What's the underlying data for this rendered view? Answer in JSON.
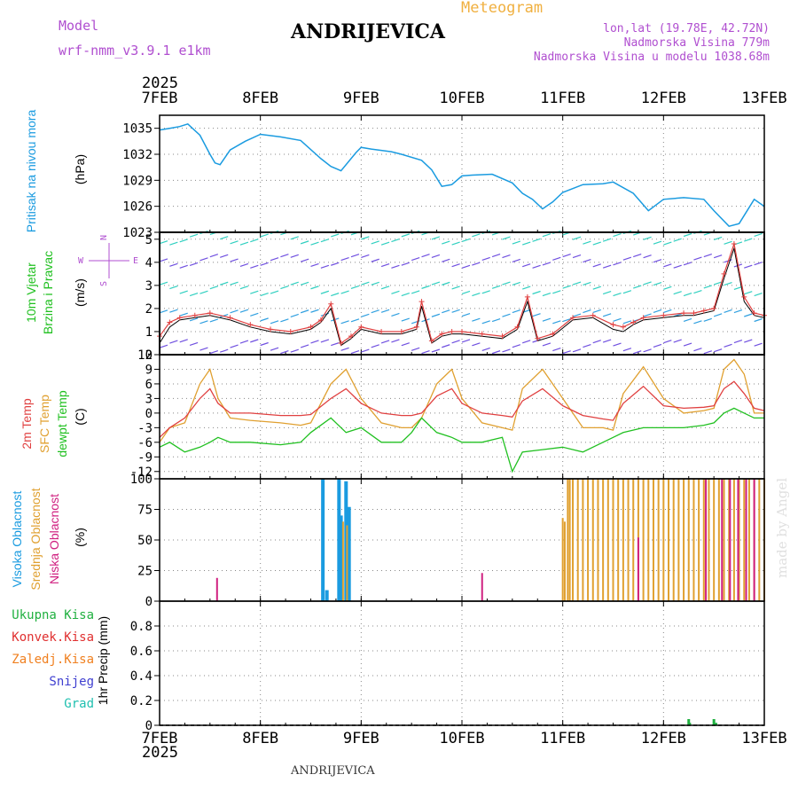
{
  "header": {
    "model_label": "Model",
    "model_name": "wrf-nmm_v3.9.1  e1km",
    "title": "ANDRIJEVICA",
    "subtitle": "Meteogram",
    "lonlat": "lon,lat (19.78E, 42.72N)",
    "elevation": "Nadmorska Visina 779m",
    "model_elevation": "Nadmorska Visina u modelu 1038.68m"
  },
  "footer": {
    "station": "ANDRIJEVICA",
    "credit": "made by Angel"
  },
  "x_axis": {
    "year": "2025",
    "ticks": [
      "7FEB",
      "8FEB",
      "9FEB",
      "10FEB",
      "11FEB",
      "12FEB",
      "13FEB"
    ]
  },
  "colors": {
    "pressure": "#1a9be0",
    "temp2m": "#e04040",
    "sfc_temp": "#e0a030",
    "dewpoint": "#20c020",
    "high_cloud": "#1a9be0",
    "mid_cloud": "#e0a030",
    "low_cloud": "#d02080",
    "total_precip": "#20b040",
    "conv_precip": "#e03030",
    "frozen_precip": "#f08020",
    "snow": "#4040d0",
    "graupel": "#20c0b0",
    "wind_label": "#20c020",
    "compass": "#b04fd0"
  },
  "panel_labels": {
    "pressure": [
      "Pritisak na nivou mora",
      "(hPa)"
    ],
    "wind": [
      "10m Vjetar",
      "Brzina i Pravac",
      "(m/s)"
    ],
    "compass": {
      "n": "N",
      "s": "S",
      "w": "W",
      "e": "E"
    },
    "temp": [
      "2m Temp",
      "SFC Temp",
      "dewpt Temp",
      "(C)"
    ],
    "cloud": [
      "Visoka Oblacnost",
      "Srednja Oblacnost",
      "Niska Oblacnost",
      "(%)"
    ],
    "precip": [
      "Ukupna Kisa",
      "Konvek.Kisa",
      "Zaledj.Kisa",
      "Snijeg",
      "Grad",
      "1hr Precip (mm)"
    ]
  },
  "chart_data": [
    {
      "type": "line",
      "name": "pressure",
      "ylabel": "(hPa)",
      "ylim": [
        1023,
        1036.5
      ],
      "yticks": [
        1023,
        1026,
        1029,
        1032,
        1035
      ],
      "grid": true,
      "x": [
        0,
        0.1,
        0.2,
        0.28,
        0.4,
        0.5,
        0.55,
        0.6,
        0.7,
        0.85,
        1.0,
        1.2,
        1.4,
        1.6,
        1.7,
        1.8,
        1.95,
        2.0,
        2.1,
        2.3,
        2.4,
        2.6,
        2.7,
        2.8,
        2.9,
        3.0,
        3.1,
        3.3,
        3.5,
        3.6,
        3.7,
        3.8,
        3.9,
        4.0,
        4.2,
        4.4,
        4.5,
        4.7,
        4.85,
        5.0,
        5.2,
        5.4,
        5.5,
        5.65,
        5.75,
        5.9,
        6.0
      ],
      "series": [
        {
          "values": [
            1034.8,
            1035,
            1035.2,
            1035.5,
            1034.2,
            1032.0,
            1031.0,
            1030.8,
            1032.5,
            1033.5,
            1034.3,
            1034.0,
            1033.6,
            1031.5,
            1030.6,
            1030.1,
            1032.2,
            1032.8,
            1032.6,
            1032.3,
            1032.0,
            1031.3,
            1030.2,
            1028.3,
            1028.5,
            1029.5,
            1029.6,
            1029.7,
            1028.7,
            1027.5,
            1026.8,
            1025.7,
            1026.5,
            1027.6,
            1028.5,
            1028.6,
            1028.8,
            1027.5,
            1025.5,
            1026.8,
            1027.0,
            1026.8,
            1025.5,
            1023.7,
            1024.0,
            1026.8,
            1026.0
          ]
        }
      ]
    },
    {
      "type": "line",
      "name": "wind",
      "ylabel": "(m/s)",
      "ylim": [
        0,
        5.3
      ],
      "yticks": [
        0,
        1,
        2,
        3,
        4,
        5
      ],
      "grid": true,
      "x": [
        0,
        0.1,
        0.2,
        0.35,
        0.5,
        0.7,
        0.9,
        1.1,
        1.3,
        1.5,
        1.6,
        1.7,
        1.8,
        1.9,
        2.0,
        2.2,
        2.4,
        2.55,
        2.6,
        2.7,
        2.8,
        2.9,
        3.0,
        3.2,
        3.4,
        3.55,
        3.65,
        3.75,
        3.9,
        4.1,
        4.3,
        4.5,
        4.6,
        4.7,
        4.8,
        5.0,
        5.2,
        5.3,
        5.4,
        5.5,
        5.6,
        5.7,
        5.8,
        5.9,
        6.0
      ],
      "series": [
        {
          "values": [
            0.8,
            1.4,
            1.6,
            1.7,
            1.8,
            1.6,
            1.3,
            1.1,
            1.0,
            1.2,
            1.5,
            2.2,
            0.5,
            0.8,
            1.2,
            1.0,
            1.0,
            1.2,
            2.3,
            0.6,
            0.9,
            1.0,
            1.0,
            0.9,
            0.8,
            1.2,
            2.5,
            0.7,
            0.9,
            1.6,
            1.7,
            1.3,
            1.2,
            1.4,
            1.6,
            1.7,
            1.8,
            1.8,
            1.9,
            2.0,
            3.5,
            4.8,
            2.5,
            1.8,
            1.7
          ]
        },
        {
          "values": [
            0.5,
            1.2,
            1.5,
            1.6,
            1.7,
            1.5,
            1.2,
            1.0,
            0.9,
            1.1,
            1.4,
            2.0,
            0.4,
            0.7,
            1.1,
            0.9,
            0.9,
            1.1,
            2.1,
            0.5,
            0.8,
            0.9,
            0.9,
            0.8,
            0.7,
            1.1,
            2.3,
            0.6,
            0.8,
            1.5,
            1.6,
            1.1,
            1.0,
            1.3,
            1.5,
            1.6,
            1.7,
            1.7,
            1.8,
            1.9,
            3.3,
            4.6,
            2.3,
            1.7,
            1.6
          ]
        }
      ]
    },
    {
      "type": "line",
      "name": "temperature",
      "ylabel": "(C)",
      "ylim": [
        -13.5,
        12
      ],
      "yticks": [
        -12,
        -9,
        -6,
        -3,
        0,
        3,
        6,
        9,
        12
      ],
      "grid": true,
      "x": [
        0,
        0.1,
        0.25,
        0.4,
        0.5,
        0.58,
        0.7,
        0.9,
        1.2,
        1.4,
        1.5,
        1.7,
        1.85,
        2.0,
        2.2,
        2.4,
        2.5,
        2.6,
        2.75,
        2.9,
        3.0,
        3.2,
        3.4,
        3.5,
        3.6,
        3.8,
        4.0,
        4.2,
        4.4,
        4.5,
        4.6,
        4.8,
        5.0,
        5.2,
        5.4,
        5.5,
        5.6,
        5.7,
        5.8,
        5.9,
        6.0
      ],
      "series": [
        {
          "values": [
            -5,
            -3,
            -1,
            3,
            5,
            2,
            0,
            0,
            -0.5,
            -0.5,
            -0.3,
            3,
            5,
            2,
            0,
            -0.5,
            -0.5,
            0,
            3.5,
            5,
            2,
            0,
            -0.5,
            -0.8,
            2.5,
            5,
            1.5,
            -0.5,
            -1.2,
            -1.5,
            2,
            5.5,
            1.5,
            1.0,
            1.2,
            1.5,
            5,
            6.5,
            4,
            1,
            0.5
          ]
        },
        {
          "values": [
            -6,
            -3,
            -2,
            6,
            9,
            3,
            -1,
            -1.5,
            -2,
            -2.5,
            -2,
            6,
            9,
            3,
            -2,
            -3,
            -3,
            -1,
            6,
            9,
            3,
            -2,
            -3,
            -3.5,
            5,
            9,
            3,
            -3,
            -3,
            -3.5,
            4,
            9.5,
            3,
            0,
            0.5,
            1,
            9,
            11,
            8,
            0,
            0
          ]
        },
        {
          "values": [
            -7,
            -6,
            -8,
            -7,
            -6,
            -5,
            -6,
            -6,
            -6.5,
            -6,
            -4,
            -1,
            -4,
            -3,
            -6,
            -6,
            -4,
            -1,
            -4,
            -5,
            -6,
            -6,
            -5,
            -12,
            -8,
            -7.5,
            -7,
            -8,
            -6,
            -5,
            -4,
            -3,
            -3,
            -3,
            -2.5,
            -2,
            0,
            1,
            0,
            -1,
            -1
          ]
        }
      ]
    },
    {
      "type": "bar",
      "name": "cloud",
      "ylabel": "(%)",
      "ylim": [
        0,
        100
      ],
      "yticks": [
        0,
        25,
        50,
        75,
        100
      ],
      "grid": true,
      "series": [
        {
          "x": [
            1.62,
            1.66,
            1.78,
            1.8,
            1.85,
            1.88
          ],
          "values": [
            100,
            9,
            100,
            70,
            98,
            77
          ]
        },
        {
          "x": [
            1.82,
            1.86,
            4.0,
            4.02,
            4.05,
            4.07,
            4.1,
            4.15,
            4.2,
            4.25,
            4.3,
            4.35,
            4.4,
            4.45,
            4.5,
            4.55,
            4.6,
            4.65,
            4.7,
            4.75,
            4.8,
            4.85,
            4.9,
            4.95,
            5.0,
            5.05,
            5.1,
            5.15,
            5.2,
            5.25,
            5.3,
            5.35,
            5.4,
            5.45,
            5.5,
            5.55,
            5.6,
            5.65,
            5.7,
            5.75,
            5.8,
            5.85,
            5.9,
            5.95,
            6.0
          ],
          "values": [
            65,
            62,
            68,
            65,
            100,
            100,
            100,
            100,
            100,
            100,
            100,
            100,
            100,
            100,
            100,
            100,
            100,
            100,
            100,
            100,
            100,
            100,
            100,
            100,
            100,
            100,
            100,
            100,
            100,
            100,
            100,
            100,
            100,
            100,
            100,
            100,
            100,
            100,
            100,
            100,
            100,
            100,
            100,
            100,
            100
          ]
        },
        {
          "x": [
            0.57,
            3.2,
            4.75,
            5.42,
            5.58,
            5.66,
            5.74,
            5.82,
            5.9
          ],
          "values": [
            19,
            23,
            52,
            100,
            100,
            100,
            100,
            100,
            100
          ]
        }
      ]
    },
    {
      "type": "bar",
      "name": "precip",
      "ylabel": "1hr Precip (mm)",
      "ylim": [
        0,
        1.0
      ],
      "yticks": [
        0,
        0.2,
        0.4,
        0.6,
        0.8
      ],
      "grid": true,
      "series": [
        {
          "x": [
            5.25,
            5.26,
            5.5,
            5.52
          ],
          "values": [
            0.05,
            0.02,
            0.05,
            0.02
          ]
        }
      ]
    }
  ]
}
